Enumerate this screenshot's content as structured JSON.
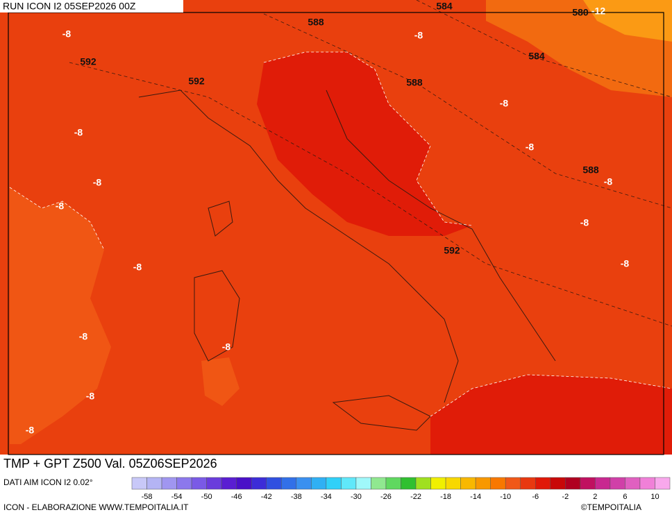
{
  "header": {
    "run": "RUN ICON I2 05SEP2026 00Z"
  },
  "map": {
    "labels": [
      584,
      588,
      -8,
      580,
      -12,
      -8,
      592,
      584,
      592,
      588,
      -8,
      -8,
      -8,
      588,
      -8,
      -8,
      -8,
      -8,
      592,
      -8,
      -8,
      -8,
      -8,
      -8,
      -8
    ]
  },
  "footer": {
    "title": "TMP + GPT Z500 Val. 05Z06SEP2026",
    "source": "DATI AIM ICON I2 0.02°",
    "credit": "ICON - ELABORAZIONE WWW.TEMPOITALIA.IT",
    "copyright": "©TEMPOITALIA"
  },
  "legend": {
    "ticks": [
      -58,
      -54,
      -50,
      -46,
      -42,
      -38,
      -34,
      -30,
      -26,
      -22,
      -18,
      -14,
      -10,
      -6,
      -2,
      2,
      6,
      10
    ],
    "colors": [
      "#c8c8f8",
      "#b4b4f4",
      "#a096f0",
      "#8c78ec",
      "#7a5ae6",
      "#6a3cdc",
      "#5a1ed2",
      "#4a10c8",
      "#3c2cd8",
      "#3050e0",
      "#3270e8",
      "#3a90f0",
      "#30b0f4",
      "#30d0f8",
      "#60e8fa",
      "#a0f8fa",
      "#90e890",
      "#60d860",
      "#30c030",
      "#a0e020",
      "#f0f000",
      "#f8d800",
      "#f8b800",
      "#f89800",
      "#f87800",
      "#f05818",
      "#e83810",
      "#e01808",
      "#c80808",
      "#b00020",
      "#c01060",
      "#c82890",
      "#d040a8",
      "#e060c0",
      "#f080d8",
      "#f8a8ec"
    ]
  }
}
